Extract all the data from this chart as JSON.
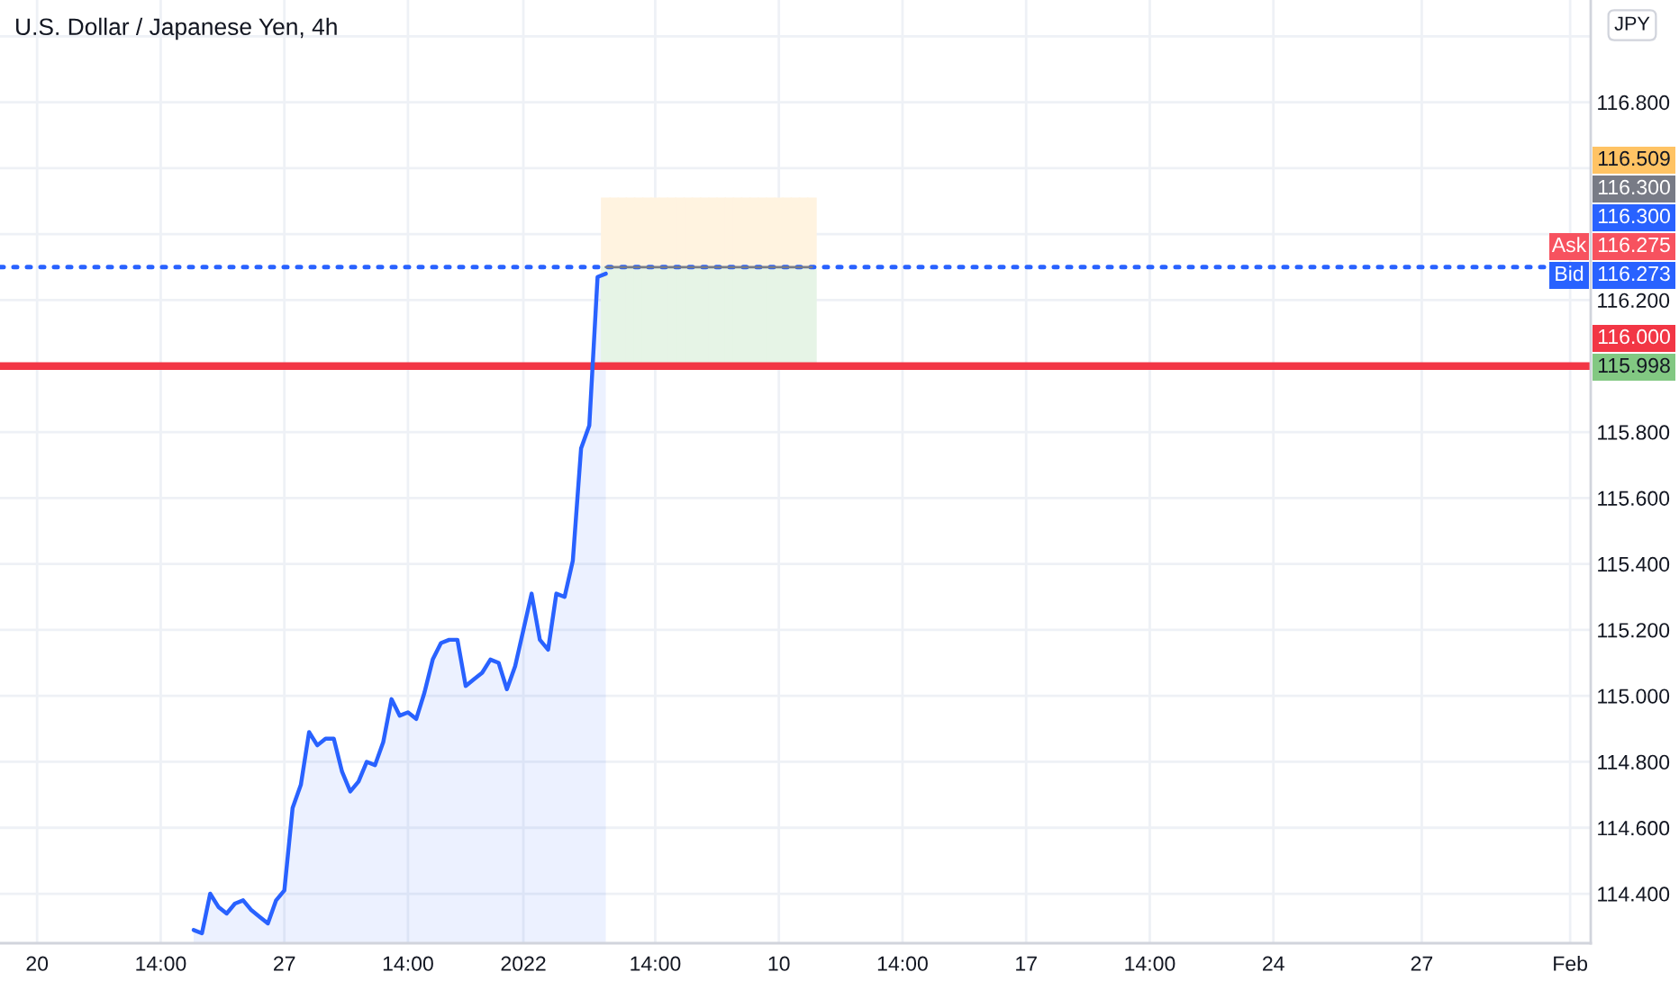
{
  "chart_data": {
    "type": "area",
    "title": "U.S. Dollar / Japanese Yen, 4h",
    "categories": [
      null,
      null,
      null,
      null,
      "20",
      null,
      null,
      null,
      null,
      null,
      null,
      null,
      null,
      null,
      null,
      null,
      null,
      null,
      null,
      "14:00",
      null,
      null,
      null,
      null,
      null,
      null,
      null,
      null,
      null,
      null,
      null,
      null,
      null,
      null,
      "27",
      null,
      null,
      null,
      null,
      null,
      null,
      null,
      null,
      null,
      null,
      null,
      null,
      null,
      null,
      "14:00",
      null,
      null,
      null,
      null,
      null,
      null,
      null,
      null,
      null,
      null,
      null,
      null,
      null,
      "2022",
      null,
      null,
      null,
      null,
      null,
      null,
      null,
      null,
      null,
      null,
      null,
      null,
      null,
      null,
      null,
      "14:00",
      null,
      null,
      null,
      null,
      null,
      null,
      null,
      null,
      null,
      null,
      null,
      null,
      null,
      null,
      "10",
      null,
      null,
      null,
      null,
      null,
      null,
      null,
      null,
      null,
      null,
      null,
      null,
      null,
      null,
      "14:00",
      null,
      null,
      null,
      null,
      null,
      null,
      null,
      null,
      null,
      null,
      null,
      null,
      null,
      null,
      "17",
      null,
      null,
      null,
      null,
      null,
      null,
      null,
      null,
      null,
      null,
      null,
      null,
      null,
      null,
      "14:00",
      null,
      null,
      null,
      null,
      null,
      null,
      null,
      null,
      null,
      null,
      null,
      null,
      null,
      null,
      "24",
      null,
      null,
      null,
      null,
      null,
      null,
      null,
      null,
      null,
      null,
      null,
      null,
      null,
      null,
      null,
      null,
      null,
      "27",
      null,
      null,
      null,
      null,
      null,
      null,
      null,
      null,
      null,
      null,
      null,
      null,
      null,
      null,
      null,
      null,
      null,
      "Feb",
      null,
      null
    ],
    "ylim": [
      114.25,
      117.11
    ],
    "yticks": [
      {
        "value": 114.4,
        "label": "114.400"
      },
      {
        "value": 114.6,
        "label": "114.600"
      },
      {
        "value": 114.8,
        "label": "114.800"
      },
      {
        "value": 115.0,
        "label": "115.000"
      },
      {
        "value": 115.2,
        "label": "115.200"
      },
      {
        "value": 115.4,
        "label": "115.400"
      },
      {
        "value": 115.6,
        "label": "115.600"
      },
      {
        "value": 115.8,
        "label": "115.800"
      },
      {
        "value": 116.0,
        "label": null
      },
      {
        "value": 116.2,
        "label": "116.200"
      },
      {
        "value": 116.4,
        "label": null
      },
      {
        "value": 116.6,
        "label": null
      },
      {
        "value": 116.8,
        "label": "116.800"
      },
      {
        "value": 117.0,
        "label": null
      }
    ],
    "grid": true,
    "series": [
      {
        "color": "#2962ff",
        "values": [
          null,
          null,
          null,
          null,
          null,
          null,
          null,
          null,
          null,
          null,
          null,
          null,
          null,
          null,
          null,
          null,
          null,
          null,
          null,
          null,
          null,
          null,
          null,
          114.29,
          114.28,
          114.4,
          114.36,
          114.34,
          114.37,
          114.38,
          114.35,
          114.33,
          114.31,
          114.38,
          114.41,
          114.66,
          114.73,
          114.89,
          114.85,
          114.87,
          114.87,
          114.77,
          114.71,
          114.74,
          114.8,
          114.79,
          114.86,
          114.99,
          114.94,
          114.95,
          114.93,
          115.01,
          115.11,
          115.16,
          115.17,
          115.17,
          115.03,
          115.05,
          115.07,
          115.11,
          115.1,
          115.02,
          115.09,
          115.2,
          115.31,
          115.17,
          115.14,
          115.31,
          115.3,
          115.41,
          115.75,
          115.82,
          116.27,
          116.28,
          null,
          null,
          null,
          null,
          null,
          null,
          null,
          null,
          null,
          null,
          null,
          null,
          null,
          null,
          null,
          null,
          null,
          null,
          null,
          null,
          null,
          null,
          null,
          null,
          null,
          null,
          null,
          null,
          null,
          null,
          null,
          null,
          null,
          null,
          null,
          null,
          null,
          null,
          null,
          null,
          null,
          null,
          null,
          null,
          null,
          null,
          null,
          null,
          null,
          null,
          null,
          null,
          null,
          null,
          null,
          null,
          null,
          null,
          null,
          null,
          null,
          null,
          null,
          null,
          null,
          null,
          null,
          null,
          null,
          null,
          null,
          null,
          null,
          null,
          null,
          null,
          null,
          null,
          null,
          null,
          null,
          null,
          null,
          null,
          null,
          null,
          null,
          null,
          null,
          null,
          null,
          null,
          null,
          null,
          null,
          null,
          null,
          null,
          null,
          null,
          null,
          null,
          null,
          null,
          null,
          null,
          null,
          null,
          null,
          null,
          null,
          null,
          null,
          null,
          null,
          null,
          null,
          null,
          null
        ]
      },
      {
        "type": "bar",
        "color": "#fff3e0",
        "values": [
          null,
          null,
          null,
          null,
          null,
          null,
          null,
          null,
          null,
          null,
          null,
          null,
          null,
          null,
          null,
          null,
          null,
          null,
          null,
          null,
          null,
          null,
          null,
          null,
          null,
          null,
          null,
          null,
          null,
          null,
          null,
          null,
          null,
          null,
          null,
          null,
          null,
          null,
          null,
          null,
          null,
          null,
          null,
          null,
          null,
          null,
          null,
          null,
          null,
          null,
          null,
          null,
          null,
          null,
          null,
          null,
          null,
          null,
          null,
          null,
          null,
          null,
          null,
          null,
          null,
          null,
          null,
          null,
          null,
          null,
          null,
          null,
          null,
          0.209,
          0.209,
          0.209,
          0.209,
          0.209,
          0.209,
          0.209,
          0.209,
          0.209,
          0.209,
          0.209,
          0.209,
          0.209,
          0.209,
          0.209,
          0.209,
          0.209,
          0.209,
          0.209,
          0.209,
          0.209,
          0.209,
          0.209,
          0.209,
          0.209,
          0.209,
          null,
          null,
          null,
          null,
          null,
          null,
          null,
          null,
          null,
          null,
          null,
          null,
          null,
          null,
          null,
          null,
          null,
          null,
          null,
          null,
          null,
          null,
          null,
          null,
          null,
          null,
          null,
          null,
          null,
          null,
          null,
          null,
          null,
          null,
          null,
          null,
          null,
          null,
          null,
          null,
          null,
          null,
          null,
          null,
          null,
          null,
          null,
          null,
          null,
          null,
          null,
          null,
          null,
          null,
          null,
          null,
          null,
          null,
          null,
          null,
          null,
          null,
          null,
          null,
          null,
          null,
          null,
          null,
          null,
          null,
          null,
          null,
          null,
          null,
          null,
          null,
          null,
          null,
          null,
          null,
          null,
          null,
          null,
          null,
          null,
          null,
          null,
          null,
          null,
          null,
          null,
          null,
          null,
          null
        ],
        "base": [
          null,
          null,
          null,
          null,
          null,
          null,
          null,
          null,
          null,
          null,
          null,
          null,
          null,
          null,
          null,
          null,
          null,
          null,
          null,
          null,
          null,
          null,
          null,
          null,
          null,
          null,
          null,
          null,
          null,
          null,
          null,
          null,
          null,
          null,
          null,
          null,
          null,
          null,
          null,
          null,
          null,
          null,
          null,
          null,
          null,
          null,
          null,
          null,
          null,
          null,
          null,
          null,
          null,
          null,
          null,
          null,
          null,
          null,
          null,
          null,
          null,
          null,
          null,
          null,
          null,
          null,
          null,
          null,
          null,
          null,
          null,
          null,
          null,
          116.3,
          116.3,
          116.3,
          116.3,
          116.3,
          116.3,
          116.3,
          116.3,
          116.3,
          116.3,
          116.3,
          116.3,
          116.3,
          116.3,
          116.3,
          116.3,
          116.3,
          116.3,
          116.3,
          116.3,
          116.3,
          116.3,
          116.3,
          116.3,
          116.3,
          116.3,
          null,
          null,
          null,
          null,
          null,
          null,
          null,
          null,
          null,
          null,
          null,
          null,
          null,
          null,
          null,
          null,
          null,
          null,
          null,
          null,
          null,
          null,
          null,
          null,
          null,
          null,
          null,
          null,
          null,
          null,
          null,
          null,
          null,
          null,
          null,
          null,
          null,
          null,
          null,
          null,
          null,
          null,
          null,
          null,
          null,
          null,
          null,
          null,
          null,
          null,
          null,
          null,
          null,
          null,
          null,
          null,
          null,
          null,
          null,
          null,
          null,
          null,
          null,
          null,
          null,
          null,
          null,
          null,
          null,
          null,
          null,
          null,
          null,
          null,
          null,
          null,
          null,
          null,
          null,
          null,
          null,
          null,
          null,
          null,
          null,
          null,
          null,
          null,
          null,
          null,
          null,
          null,
          null,
          null
        ]
      },
      {
        "type": "bar",
        "color": "#e6f4e6",
        "values": [
          null,
          null,
          null,
          null,
          null,
          null,
          null,
          null,
          null,
          null,
          null,
          null,
          null,
          null,
          null,
          null,
          null,
          null,
          null,
          null,
          null,
          null,
          null,
          null,
          null,
          null,
          null,
          null,
          null,
          null,
          null,
          null,
          null,
          null,
          null,
          null,
          null,
          null,
          null,
          null,
          null,
          null,
          null,
          null,
          null,
          null,
          null,
          null,
          null,
          null,
          null,
          null,
          null,
          null,
          null,
          null,
          null,
          null,
          null,
          null,
          null,
          null,
          null,
          null,
          null,
          null,
          null,
          null,
          null,
          null,
          null,
          null,
          null,
          0.302,
          0.302,
          0.302,
          0.302,
          0.302,
          0.302,
          0.302,
          0.302,
          0.302,
          0.302,
          0.302,
          0.302,
          0.302,
          0.302,
          0.302,
          0.302,
          0.302,
          0.302,
          0.302,
          0.302,
          0.302,
          0.302,
          0.302,
          0.302,
          0.302,
          0.302,
          null,
          null,
          null,
          null,
          null,
          null,
          null,
          null,
          null,
          null,
          null,
          null,
          null,
          null,
          null,
          null,
          null,
          null,
          null,
          null,
          null,
          null,
          null,
          null,
          null,
          null,
          null,
          null,
          null,
          null,
          null,
          null,
          null,
          null,
          null,
          null,
          null,
          null,
          null,
          null,
          null,
          null,
          null,
          null,
          null,
          null,
          null,
          null,
          null,
          null,
          null,
          null,
          null,
          null,
          null,
          null,
          null,
          null,
          null,
          null,
          null,
          null,
          null,
          null,
          null,
          null,
          null,
          null,
          null,
          null,
          null,
          null,
          null,
          null,
          null,
          null,
          null,
          null,
          null,
          null,
          null,
          null,
          null,
          null,
          null,
          null,
          null,
          null,
          null,
          null,
          null,
          null,
          null,
          null
        ],
        "base": [
          null,
          null,
          null,
          null,
          null,
          null,
          null,
          null,
          null,
          null,
          null,
          null,
          null,
          null,
          null,
          null,
          null,
          null,
          null,
          null,
          null,
          null,
          null,
          null,
          null,
          null,
          null,
          null,
          null,
          null,
          null,
          null,
          null,
          null,
          null,
          null,
          null,
          null,
          null,
          null,
          null,
          null,
          null,
          null,
          null,
          null,
          null,
          null,
          null,
          null,
          null,
          null,
          null,
          null,
          null,
          null,
          null,
          null,
          null,
          null,
          null,
          null,
          null,
          null,
          null,
          null,
          null,
          null,
          null,
          null,
          null,
          null,
          null,
          115.998,
          115.998,
          115.998,
          115.998,
          115.998,
          115.998,
          115.998,
          115.998,
          115.998,
          115.998,
          115.998,
          115.998,
          115.998,
          115.998,
          115.998,
          115.998,
          115.998,
          115.998,
          115.998,
          115.998,
          115.998,
          115.998,
          115.998,
          115.998,
          115.998,
          115.998,
          null,
          null,
          null,
          null,
          null,
          null,
          null,
          null,
          null,
          null,
          null,
          null,
          null,
          null,
          null,
          null,
          null,
          null,
          null,
          null,
          null,
          null,
          null,
          null,
          null,
          null,
          null,
          null,
          null,
          null,
          null,
          null,
          null,
          null,
          null,
          null,
          null,
          null,
          null,
          null,
          null,
          null,
          null,
          null,
          null,
          null,
          null,
          null,
          null,
          null,
          null,
          null,
          null,
          null,
          null,
          null,
          null,
          null,
          null,
          null,
          null,
          null,
          null,
          null,
          null,
          null,
          null,
          null,
          null,
          null,
          null,
          null,
          null,
          null,
          null,
          null,
          null,
          null,
          null,
          null,
          null,
          null,
          null,
          null,
          null,
          null,
          null,
          null,
          null,
          null,
          null,
          null,
          null,
          null
        ]
      },
      {
        "type": "line",
        "color": "#787b86",
        "line_style": "solid",
        "values": [
          null,
          null,
          null,
          null,
          null,
          null,
          null,
          null,
          null,
          null,
          null,
          null,
          null,
          null,
          null,
          null,
          null,
          null,
          null,
          null,
          null,
          null,
          null,
          null,
          null,
          null,
          null,
          null,
          null,
          null,
          null,
          null,
          null,
          null,
          null,
          null,
          null,
          null,
          null,
          null,
          null,
          null,
          null,
          null,
          null,
          null,
          null,
          null,
          null,
          null,
          null,
          null,
          null,
          null,
          null,
          null,
          null,
          null,
          null,
          null,
          null,
          null,
          null,
          null,
          null,
          null,
          null,
          null,
          null,
          null,
          null,
          null,
          null,
          116.3,
          116.3,
          116.3,
          116.3,
          116.3,
          116.3,
          116.3,
          116.3,
          116.3,
          116.3,
          116.3,
          116.3,
          116.3,
          116.3,
          116.3,
          116.3,
          116.3,
          116.3,
          116.3,
          116.3,
          116.3,
          116.3,
          116.3,
          116.3,
          116.3,
          116.3,
          null,
          null,
          null,
          null,
          null,
          null,
          null,
          null,
          null,
          null,
          null,
          null,
          null,
          null,
          null,
          null,
          null,
          null,
          null,
          null,
          null,
          null,
          null,
          null,
          null,
          null,
          null,
          null,
          null,
          null,
          null,
          null,
          null,
          null,
          null,
          null,
          null,
          null,
          null,
          null,
          null,
          null,
          null,
          null,
          null,
          null,
          null,
          null,
          null,
          null,
          null,
          null,
          null,
          null,
          null,
          null,
          null,
          null,
          null,
          null,
          null,
          null,
          null,
          null,
          null,
          null,
          null,
          null,
          null,
          null,
          null,
          null,
          null,
          null,
          null,
          null,
          null,
          null,
          null,
          null,
          null,
          null,
          null,
          null,
          null,
          null,
          null,
          null,
          null,
          null,
          null,
          null,
          null,
          null
        ]
      }
    ],
    "ref_lines": [
      {
        "axis": "y",
        "value": 116.3,
        "label": "116.300",
        "color": "#2962ff",
        "line_style": "dotted"
      },
      {
        "axis": "y",
        "value": 116.0,
        "label": "116.000",
        "color": "#f23645",
        "line_style": "solid"
      }
    ],
    "annotations": [
      "116.509",
      "116.300",
      "Ask",
      "116.275",
      "Bid",
      "116.273",
      "115.998",
      "JPY"
    ]
  }
}
